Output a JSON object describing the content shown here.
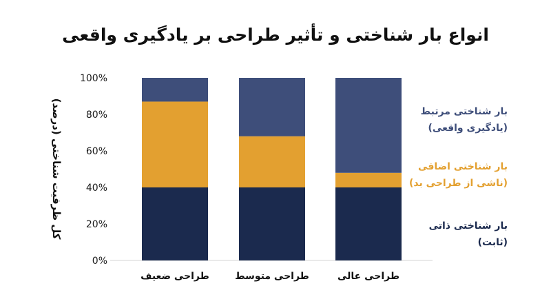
{
  "chart_data": {
    "type": "bar",
    "stacked": true,
    "title": "انواع بار شناختی و تأثیر طراحی بر یادگیری واقعی",
    "ylabel": "کل ظرفیت شناختی (درصد)",
    "xlabel": "",
    "categories": [
      "طراحی ضعیف",
      "طراحی متوسط",
      "طراحی عالی"
    ],
    "yticks": [
      "0%",
      "20%",
      "40%",
      "60%",
      "80%",
      "100%"
    ],
    "ylim": [
      0,
      100
    ],
    "grid": false,
    "legend_position": "right",
    "series": [
      {
        "name": "بار شناختی ذاتی (ثابت)",
        "legend_line1": "بار شناختی ذاتی",
        "legend_line2": "(ثابت)",
        "color": "#1b2a4e",
        "values": [
          40,
          40,
          40
        ]
      },
      {
        "name": "بار شناختی اضافی (ناشی از طراحی بد)",
        "legend_line1": "بار شناختی اضافی",
        "legend_line2": "(ناشی از طراحی بد)",
        "color": "#e3a030",
        "values": [
          47,
          28,
          8
        ]
      },
      {
        "name": "بار شناختی مرتبط (یادگیری واقعی)",
        "legend_line1": "بار شناختی مرتبط",
        "legend_line2": "(یادگیری واقعی)",
        "color": "#3e4e7a",
        "values": [
          13,
          32,
          52
        ]
      }
    ]
  }
}
